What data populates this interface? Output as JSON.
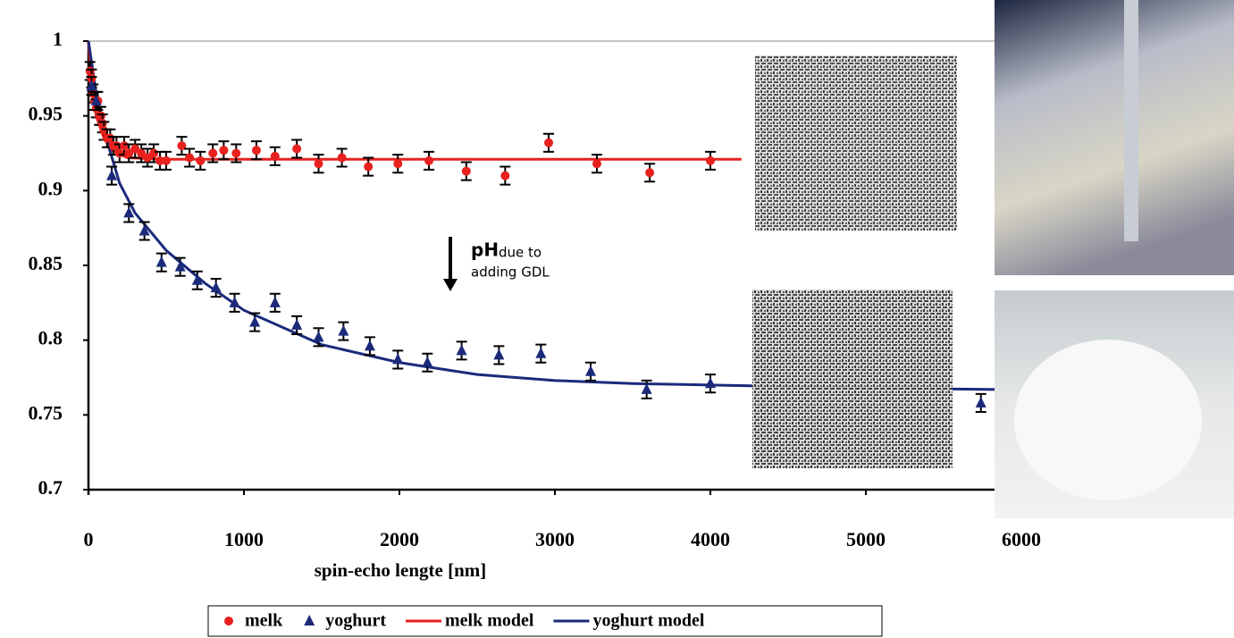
{
  "chart_data": {
    "type": "scatter",
    "xlabel": "spin-echo lengte [nm]",
    "xlim": [
      0,
      6000
    ],
    "xticks": [
      0,
      1000,
      2000,
      3000,
      4000,
      5000,
      6000
    ],
    "ylim": [
      0.7,
      1
    ],
    "yticks": [
      0.7,
      0.75,
      0.8,
      0.85,
      0.9,
      0.95,
      1
    ],
    "legend": "bottom",
    "annotation": {
      "bold": "pH",
      "lines": [
        "due to",
        "adding GDL"
      ]
    },
    "series": [
      {
        "name": "melk",
        "kind": "points",
        "marker": "circle",
        "color": "#e8211f",
        "error": 0.006,
        "x": [
          10,
          20,
          30,
          40,
          50,
          60,
          70,
          80,
          90,
          100,
          120,
          140,
          160,
          180,
          200,
          230,
          260,
          300,
          340,
          380,
          420,
          460,
          500,
          600,
          650,
          720,
          800,
          870,
          950,
          1080,
          1200,
          1340,
          1480,
          1630,
          1800,
          1990,
          2190,
          2430,
          2680,
          2960,
          3270,
          3610,
          4000
        ],
        "values": [
          0.98,
          0.975,
          0.965,
          0.96,
          0.955,
          0.96,
          0.95,
          0.95,
          0.945,
          0.94,
          0.935,
          0.935,
          0.93,
          0.93,
          0.925,
          0.93,
          0.925,
          0.928,
          0.925,
          0.922,
          0.925,
          0.92,
          0.92,
          0.93,
          0.922,
          0.92,
          0.925,
          0.927,
          0.925,
          0.927,
          0.923,
          0.928,
          0.918,
          0.922,
          0.916,
          0.918,
          0.92,
          0.913,
          0.91,
          0.932,
          0.918,
          0.912,
          0.92
        ]
      },
      {
        "name": "yoghurt",
        "kind": "points",
        "marker": "triangle",
        "color": "#1b2a7a",
        "error": 0.006,
        "x": [
          20,
          50,
          150,
          260,
          360,
          470,
          590,
          700,
          820,
          940,
          1070,
          1200,
          1340,
          1480,
          1640,
          1810,
          1990,
          2180,
          2400,
          2640,
          2910,
          3230,
          3590,
          4000,
          5740
        ],
        "values": [
          0.97,
          0.96,
          0.91,
          0.885,
          0.873,
          0.852,
          0.849,
          0.84,
          0.835,
          0.825,
          0.812,
          0.825,
          0.81,
          0.802,
          0.806,
          0.796,
          0.787,
          0.785,
          0.793,
          0.79,
          0.791,
          0.779,
          0.767,
          0.771,
          0.758
        ]
      },
      {
        "name": "melk model",
        "kind": "line",
        "color": "#e8211f",
        "x": [
          0,
          25,
          50,
          100,
          150,
          250,
          500,
          4200
        ],
        "values": [
          1,
          0.97,
          0.95,
          0.935,
          0.927,
          0.922,
          0.921,
          0.921
        ]
      },
      {
        "name": "yoghurt model",
        "kind": "line",
        "color": "#1b2a7a",
        "x": [
          0,
          50,
          100,
          200,
          300,
          500,
          750,
          1000,
          1500,
          2000,
          2500,
          3000,
          3500,
          4000,
          5000,
          5840
        ],
        "values": [
          1,
          0.965,
          0.94,
          0.905,
          0.885,
          0.86,
          0.838,
          0.82,
          0.797,
          0.785,
          0.777,
          0.773,
          0.771,
          0.77,
          0.768,
          0.767
        ]
      }
    ]
  }
}
